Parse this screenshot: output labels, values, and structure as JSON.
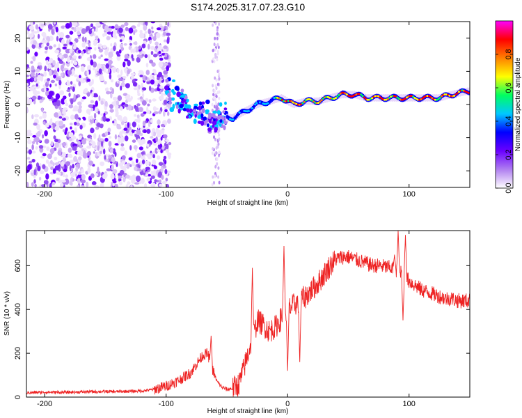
{
  "title": "S174.2025.317.07.23.G10",
  "chart_data": [
    {
      "type": "heatmap",
      "name": "spectrogram",
      "xlabel": "Height of straight line (km)",
      "ylabel": "Frequency (Hz)",
      "xlim": [
        -215,
        150
      ],
      "ylim": [
        -25,
        25
      ],
      "xticks": [
        -200,
        -100,
        0,
        100
      ],
      "xtick_labels": [
        "-200",
        "-100",
        "0",
        "100"
      ],
      "yticks": [
        -20,
        -10,
        0,
        10,
        20
      ],
      "ytick_labels": [
        "-20",
        "-10",
        "0",
        "10",
        "20"
      ],
      "colorbar": {
        "label": "Normalized spectral amplitude",
        "range": [
          0.0,
          1.0
        ],
        "ticks": [
          0.0,
          0.2,
          0.4,
          0.6,
          0.8
        ],
        "tick_labels": [
          "0.0",
          "0.2",
          "0.4",
          "0.6",
          "0.8"
        ],
        "colors": [
          "#ffffff",
          "#b07ff0",
          "#6a00ff",
          "#0000ff",
          "#00c8ff",
          "#00ff60",
          "#ffff00",
          "#ff8000",
          "#ff0000",
          "#ff00ff"
        ]
      },
      "ridge": {
        "description_values": "dominant frequency (Hz) vs height (km)",
        "x": [
          -100,
          -90,
          -80,
          -70,
          -62,
          -55,
          -45,
          -35,
          -25,
          -15,
          -5,
          5,
          15,
          25,
          35,
          45,
          55,
          65,
          75,
          85,
          95,
          105,
          115,
          125,
          135,
          148
        ],
        "y": [
          4,
          2,
          -1,
          -3,
          -5,
          -4,
          -4,
          -2,
          0,
          1,
          2,
          0,
          1,
          1,
          2,
          3,
          3,
          2,
          2,
          2,
          2,
          2,
          2,
          2,
          3,
          4
        ]
      }
    },
    {
      "type": "line",
      "name": "snr",
      "xlabel": "Height of straight line (km)",
      "ylabel": "SNR (10 * v/v)",
      "xlim": [
        -215,
        150
      ],
      "ylim": [
        0,
        760
      ],
      "xticks": [
        -200,
        -100,
        0,
        100
      ],
      "xtick_labels": [
        "-200",
        "-100",
        "0",
        "100"
      ],
      "yticks": [
        0,
        200,
        400,
        600
      ],
      "ytick_labels": [
        "0",
        "200",
        "400",
        "600"
      ],
      "line_color": "#ee2222",
      "x": [
        -215,
        -200,
        -180,
        -160,
        -140,
        -120,
        -110,
        -100,
        -90,
        -80,
        -75,
        -70,
        -66,
        -62,
        -58,
        -54,
        -50,
        -45,
        -40,
        -35,
        -30,
        -27,
        -25,
        -20,
        -15,
        -10,
        -5,
        0,
        5,
        10,
        15,
        20,
        25,
        30,
        35,
        40,
        45,
        50,
        55,
        60,
        65,
        70,
        75,
        80,
        85,
        90,
        95,
        100,
        105,
        110,
        115,
        120,
        125,
        130,
        135,
        140,
        145,
        150
      ],
      "y": [
        20,
        22,
        22,
        25,
        25,
        28,
        35,
        50,
        75,
        110,
        150,
        190,
        200,
        130,
        70,
        45,
        35,
        40,
        60,
        150,
        250,
        300,
        350,
        330,
        300,
        320,
        360,
        400,
        420,
        440,
        460,
        490,
        520,
        560,
        600,
        630,
        640,
        640,
        630,
        620,
        610,
        600,
        600,
        595,
        590,
        580,
        560,
        530,
        510,
        490,
        480,
        470,
        460,
        450,
        450,
        440,
        440,
        440
      ],
      "spikes": [
        {
          "x": -63,
          "y": 280
        },
        {
          "x": -29,
          "y": 590
        },
        {
          "x": -3,
          "y": 690
        },
        {
          "x": 0,
          "y": 120
        },
        {
          "x": 10,
          "y": 160
        },
        {
          "x": 88,
          "y": 650
        },
        {
          "x": 91,
          "y": 760
        },
        {
          "x": 95,
          "y": 350
        },
        {
          "x": 97,
          "y": 740
        }
      ]
    }
  ]
}
